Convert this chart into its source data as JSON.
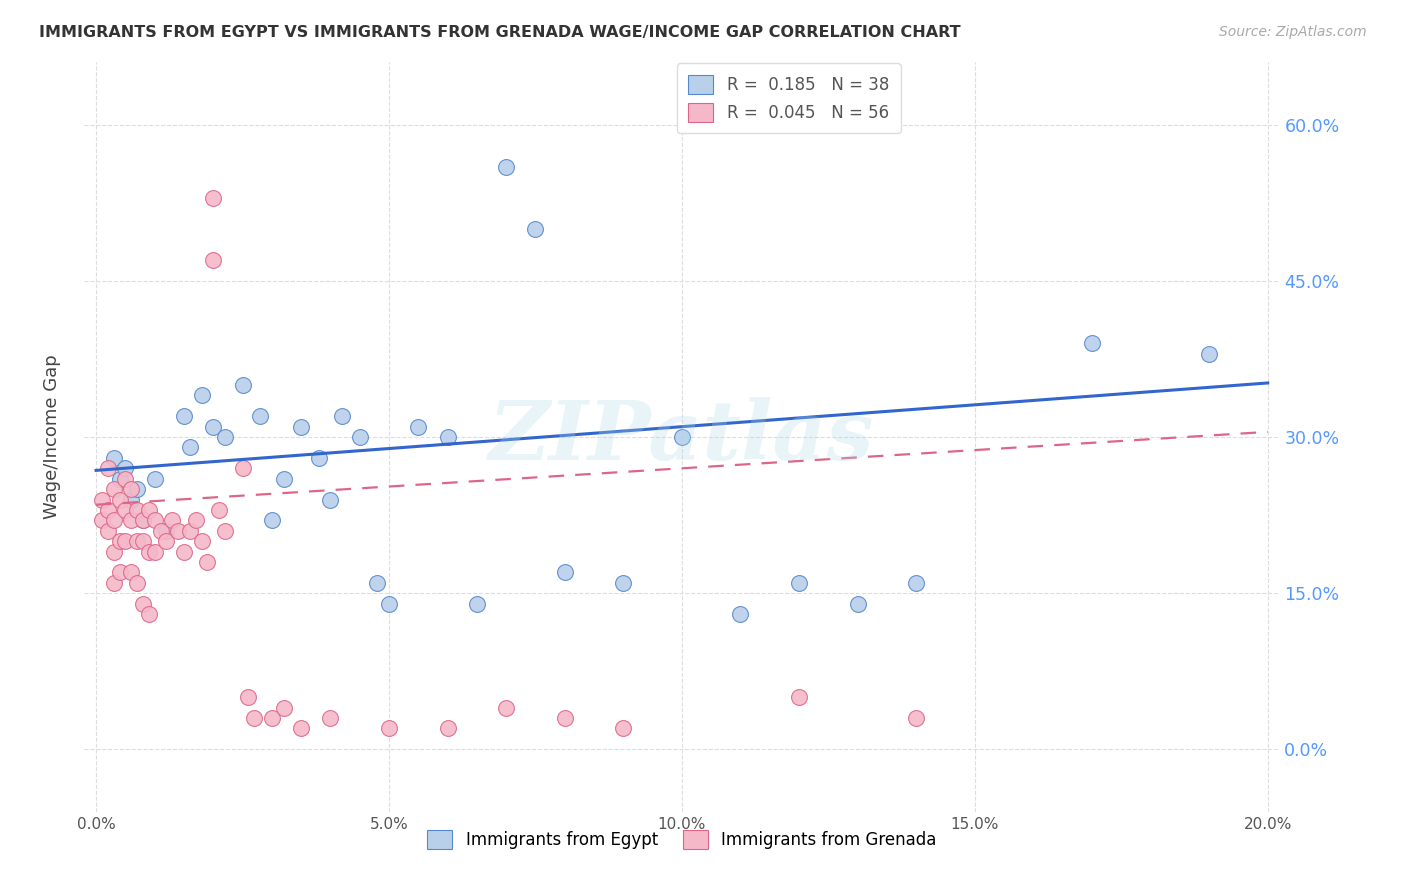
{
  "title": "IMMIGRANTS FROM EGYPT VS IMMIGRANTS FROM GRENADA WAGE/INCOME GAP CORRELATION CHART",
  "source": "Source: ZipAtlas.com",
  "ylabel": "Wage/Income Gap",
  "xlim": [
    -0.002,
    0.202
  ],
  "ylim": [
    -0.06,
    0.66
  ],
  "yticks": [
    0.0,
    0.15,
    0.3,
    0.45,
    0.6
  ],
  "xticks": [
    0.0,
    0.05,
    0.1,
    0.15,
    0.2
  ],
  "grid_color": "#dddddd",
  "bg_color": "#ffffff",
  "egypt_face": "#b8d0ea",
  "egypt_edge": "#5588cc",
  "grenada_face": "#f5b8c8",
  "grenada_edge": "#dd6688",
  "egypt_line_color": "#3366cc",
  "grenada_line_color": "#dd6688",
  "R_egypt": "0.185",
  "N_egypt": "38",
  "R_grenada": "0.045",
  "N_grenada": "56",
  "label_egypt": "Immigrants from Egypt",
  "label_grenada": "Immigrants from Grenada",
  "watermark": "ZIPatlas",
  "egypt_x": [
    0.003,
    0.004,
    0.005,
    0.006,
    0.007,
    0.008,
    0.01,
    0.012,
    0.015,
    0.016,
    0.018,
    0.02,
    0.022,
    0.025,
    0.028,
    0.03,
    0.032,
    0.035,
    0.038,
    0.04,
    0.042,
    0.045,
    0.048,
    0.05,
    0.055,
    0.06,
    0.065,
    0.07,
    0.075,
    0.08,
    0.09,
    0.1,
    0.11,
    0.12,
    0.13,
    0.14,
    0.17,
    0.19
  ],
  "egypt_y": [
    0.28,
    0.26,
    0.27,
    0.24,
    0.25,
    0.22,
    0.26,
    0.21,
    0.32,
    0.29,
    0.34,
    0.31,
    0.3,
    0.35,
    0.32,
    0.22,
    0.26,
    0.31,
    0.28,
    0.24,
    0.32,
    0.3,
    0.16,
    0.14,
    0.31,
    0.3,
    0.14,
    0.56,
    0.5,
    0.17,
    0.16,
    0.3,
    0.13,
    0.16,
    0.14,
    0.16,
    0.39,
    0.38
  ],
  "grenada_x": [
    0.001,
    0.001,
    0.002,
    0.002,
    0.002,
    0.003,
    0.003,
    0.003,
    0.003,
    0.004,
    0.004,
    0.004,
    0.005,
    0.005,
    0.005,
    0.006,
    0.006,
    0.006,
    0.007,
    0.007,
    0.007,
    0.008,
    0.008,
    0.008,
    0.009,
    0.009,
    0.009,
    0.01,
    0.01,
    0.011,
    0.012,
    0.013,
    0.014,
    0.015,
    0.016,
    0.017,
    0.018,
    0.019,
    0.02,
    0.02,
    0.021,
    0.022,
    0.025,
    0.026,
    0.027,
    0.03,
    0.032,
    0.035,
    0.04,
    0.05,
    0.06,
    0.07,
    0.08,
    0.09,
    0.12,
    0.14
  ],
  "grenada_y": [
    0.24,
    0.22,
    0.27,
    0.23,
    0.21,
    0.25,
    0.22,
    0.19,
    0.16,
    0.24,
    0.2,
    0.17,
    0.26,
    0.23,
    0.2,
    0.25,
    0.22,
    0.17,
    0.23,
    0.2,
    0.16,
    0.22,
    0.2,
    0.14,
    0.23,
    0.19,
    0.13,
    0.22,
    0.19,
    0.21,
    0.2,
    0.22,
    0.21,
    0.19,
    0.21,
    0.22,
    0.2,
    0.18,
    0.53,
    0.47,
    0.23,
    0.21,
    0.27,
    0.05,
    0.03,
    0.03,
    0.04,
    0.02,
    0.03,
    0.02,
    0.02,
    0.04,
    0.03,
    0.02,
    0.05,
    0.03
  ]
}
